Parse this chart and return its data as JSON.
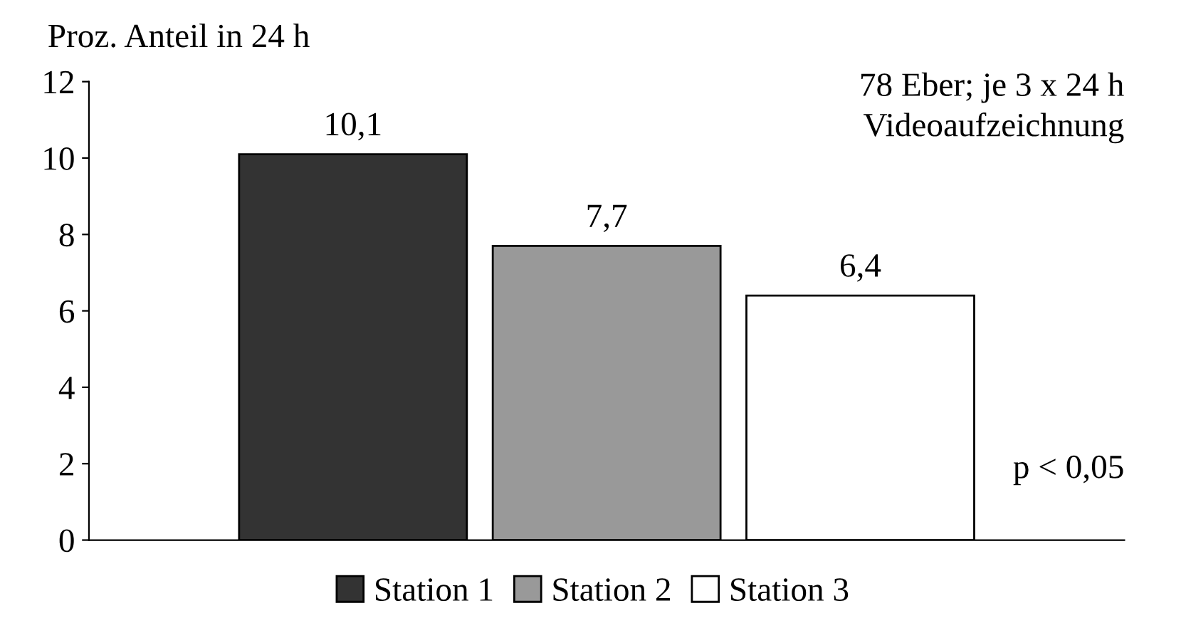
{
  "chart_data": {
    "type": "bar",
    "ylabel": "Proz. Anteil in 24 h",
    "categories": [
      null
    ],
    "series": [
      {
        "name": "Station 1",
        "color": "#333333",
        "values": [
          10.1
        ],
        "value_labels": [
          "10,1"
        ]
      },
      {
        "name": "Station 2",
        "color": "#999999",
        "values": [
          7.7
        ],
        "value_labels": [
          "7,7"
        ]
      },
      {
        "name": "Station 3",
        "color": "#ffffff",
        "values": [
          6.4
        ],
        "value_labels": [
          "6,4"
        ]
      }
    ],
    "ylim": [
      0,
      12
    ],
    "yticks": [
      0,
      2,
      4,
      6,
      8,
      10,
      12
    ],
    "grid": false,
    "legend": "bottom",
    "annotations": [
      "78 Eber; je 3 x 24 h\nVideoaufzeichnung",
      "p < 0,05"
    ]
  }
}
